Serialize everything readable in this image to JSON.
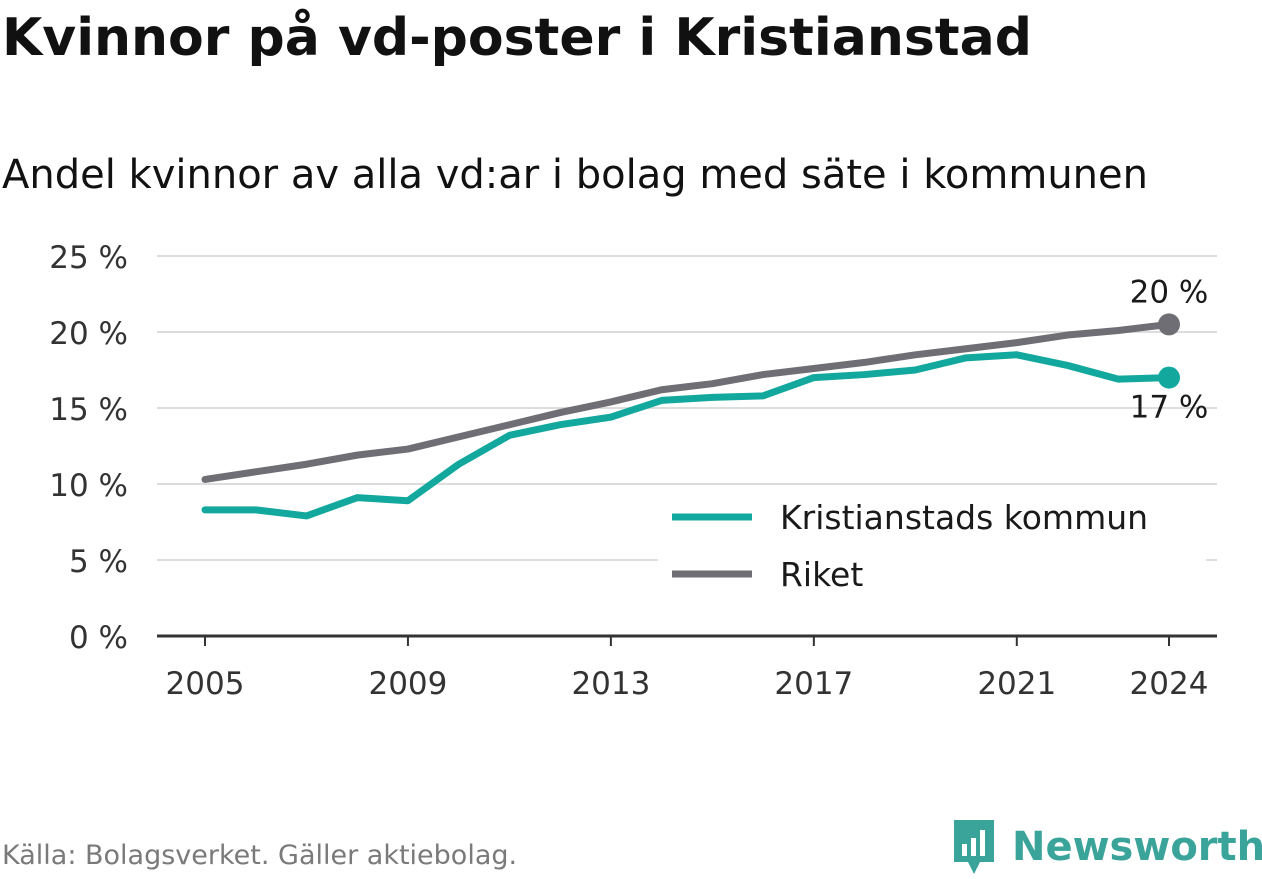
{
  "title": "Kvinnor på vd-poster i Kristianstad",
  "subtitle": "Andel kvinnor av alla vd:ar i bolag med säte i kommunen",
  "source": "Källa: Bolagsverket. Gäller aktiebolag.",
  "brand": "Newsworthy",
  "colors": {
    "kommun": "#13a89e",
    "riket": "#6f6e74",
    "grid": "#dddddd",
    "axis": "#333333"
  },
  "chart_data": {
    "type": "line",
    "x": [
      2005,
      2006,
      2007,
      2008,
      2009,
      2010,
      2011,
      2012,
      2013,
      2014,
      2015,
      2016,
      2017,
      2018,
      2019,
      2020,
      2021,
      2022,
      2023,
      2024
    ],
    "x_ticks": [
      2005,
      2009,
      2013,
      2017,
      2021,
      2024
    ],
    "y_ticks": [
      0,
      5,
      10,
      15,
      20,
      25
    ],
    "y_tick_labels": [
      "0 %",
      "5 %",
      "10 %",
      "15 %",
      "20 %",
      "25 %"
    ],
    "ylim": [
      0,
      25
    ],
    "grid": true,
    "legend_position": "bottom-right",
    "series": [
      {
        "name": "Kristianstads kommun",
        "color": "#13a89e",
        "values": [
          8.3,
          8.3,
          7.9,
          9.1,
          8.9,
          11.3,
          13.2,
          13.9,
          14.4,
          15.5,
          15.7,
          15.8,
          17.0,
          17.2,
          17.5,
          18.3,
          18.5,
          17.8,
          16.9,
          17.0
        ],
        "end_label": "17 %"
      },
      {
        "name": "Riket",
        "color": "#6f6e74",
        "values": [
          10.3,
          10.8,
          11.3,
          11.9,
          12.3,
          13.1,
          13.9,
          14.7,
          15.4,
          16.2,
          16.6,
          17.2,
          17.6,
          18.0,
          18.5,
          18.9,
          19.3,
          19.8,
          20.1,
          20.5
        ],
        "end_label": "20 %"
      }
    ]
  }
}
